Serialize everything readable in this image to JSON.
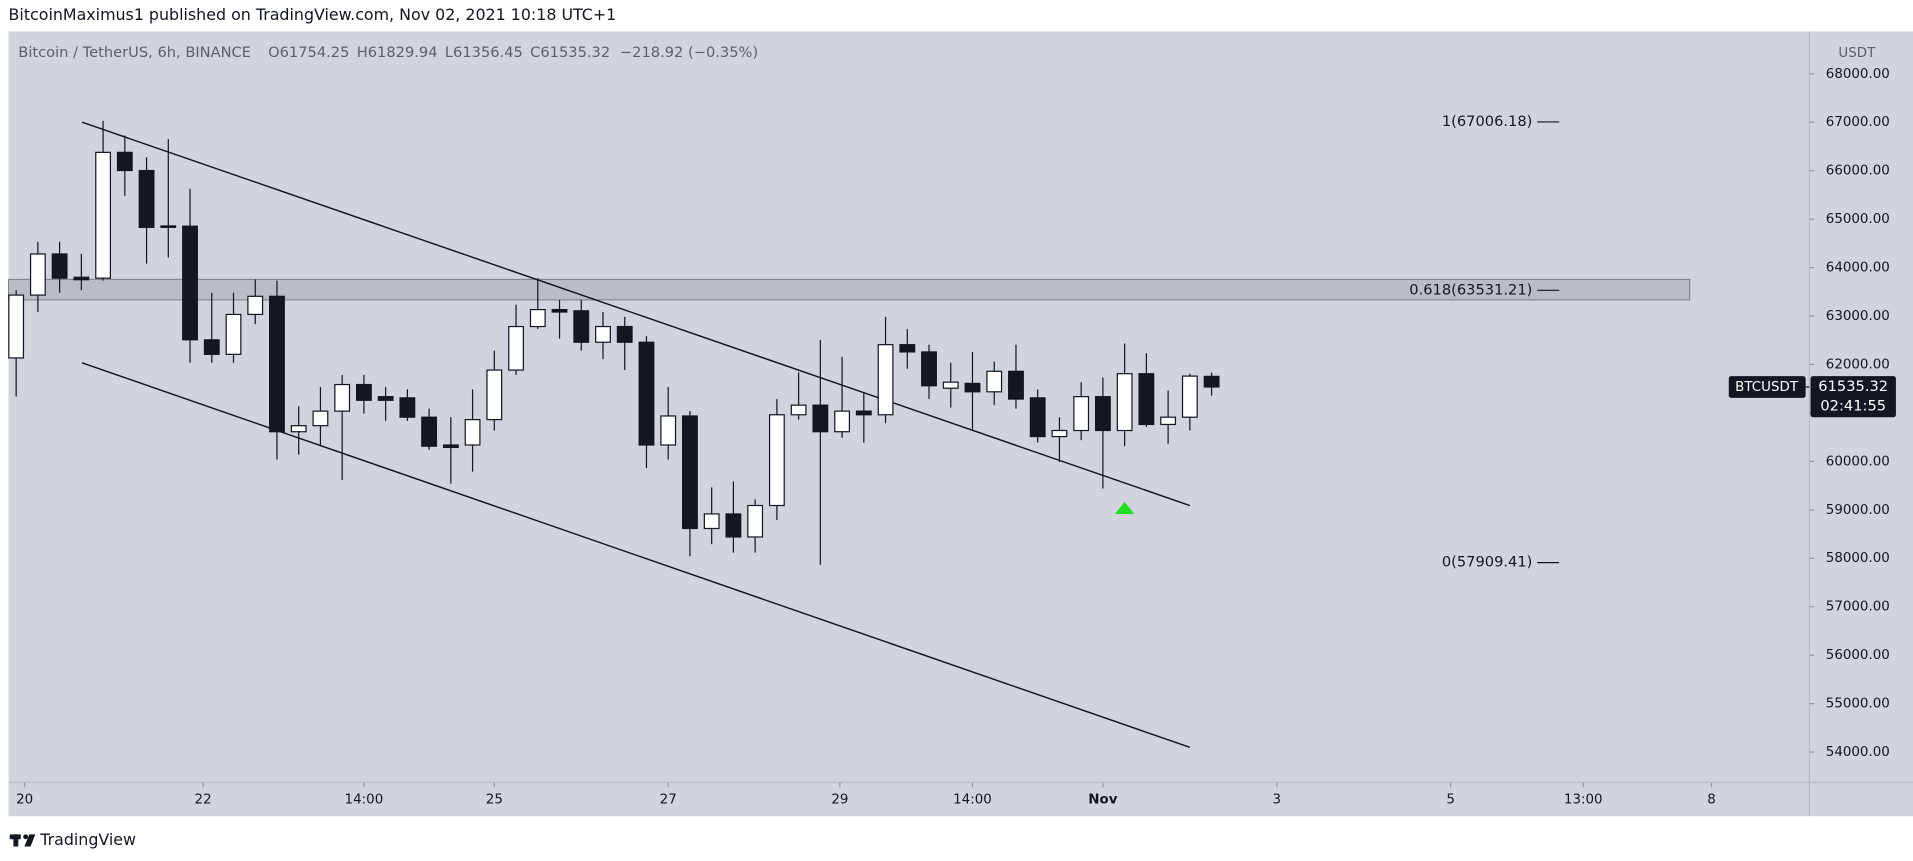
{
  "header": {
    "author_line": "BitcoinMaximus1 published on TradingView.com, Nov 02, 2021 10:18 UTC+1"
  },
  "footer": {
    "brand": "TradingView"
  },
  "chart_data": {
    "type": "candlestick",
    "symbol": "Bitcoin / TetherUS, 6h, BINANCE",
    "legend_values": [
      {
        "label": "O",
        "value": 61754.25
      },
      {
        "label": "H",
        "value": 61829.94
      },
      {
        "label": "L",
        "value": 61356.45
      },
      {
        "label": "C",
        "value": 61535.32
      }
    ],
    "change": "−218.92 (−0.35%)",
    "y_axis_title": "USDT",
    "open": [
      62135,
      63432,
      64281,
      63800,
      63782,
      66378,
      66003,
      64860,
      64855,
      62509,
      62209,
      63033,
      63407,
      60612,
      60737,
      61037,
      61586,
      61336,
      61311,
      60912,
      60338,
      60338,
      60862,
      61885,
      62783,
      63133,
      63108,
      62459,
      62783,
      62459,
      60338,
      60937,
      58615,
      58915,
      58440,
      59089,
      60962,
      61161,
      60612,
      61037,
      60962,
      62409,
      62259,
      61510,
      61610,
      61436,
      61859,
      61311,
      60512,
      60637,
      61336,
      60637,
      61810,
      60762,
      60912,
      61754.25
    ],
    "high": [
      63532,
      64531,
      64531,
      64281,
      67027,
      66727,
      66278,
      66652,
      65629,
      63482,
      63482,
      63757,
      63732,
      61138,
      61536,
      61785,
      61785,
      61536,
      61486,
      61087,
      60912,
      61486,
      62284,
      63233,
      63782,
      63332,
      63332,
      63083,
      62983,
      62584,
      61536,
      61037,
      59464,
      59588,
      59214,
      61286,
      61835,
      62509,
      62160,
      61411,
      62983,
      62733,
      62409,
      62035,
      62259,
      62060,
      62409,
      61486,
      60912,
      61635,
      61735,
      62434,
      62235,
      61461,
      61810,
      61829.94
    ],
    "low": [
      61336,
      63083,
      63482,
      63532,
      63732,
      65479,
      64081,
      64206,
      62035,
      62035,
      62035,
      62833,
      60038,
      60138,
      60337,
      59613,
      60986,
      60837,
      60837,
      60238,
      59539,
      59788,
      60637,
      61785,
      62733,
      62534,
      62284,
      62110,
      61885,
      59863,
      60038,
      58041,
      58291,
      58116,
      58116,
      58790,
      60862,
      57866,
      60487,
      60387,
      60787,
      61910,
      61286,
      61111,
      60663,
      61161,
      61087,
      60387,
      59988,
      60438,
      59439,
      60313,
      60712,
      60363,
      60637,
      61356.45
    ],
    "close": [
      63432,
      64281,
      63782,
      63750,
      66378,
      66003,
      64830,
      64830,
      62509,
      62209,
      63033,
      63407,
      60612,
      60737,
      61037,
      61586,
      61261,
      61261,
      60912,
      60313,
      60288,
      60862,
      61885,
      62783,
      63133,
      63083,
      62459,
      62783,
      62459,
      60338,
      60937,
      58615,
      58915,
      58440,
      59089,
      60962,
      61161,
      60612,
      61037,
      60962,
      62409,
      62259,
      61560,
      61635,
      61436,
      61859,
      61286,
      60512,
      60637,
      61336,
      60637,
      61810,
      60762,
      60912,
      61760,
      61535.32
    ],
    "up_color": "#ffffff",
    "down_color": "#131722",
    "outline_color": "#131722",
    "xlim": [
      -0.35,
      82.5
    ],
    "xticks": [
      {
        "value": 0.39,
        "label": "20"
      },
      {
        "value": 8.6,
        "label": "22"
      },
      {
        "value": 16.0,
        "label": "14:00"
      },
      {
        "value": 22.0,
        "label": "25"
      },
      {
        "value": 30.0,
        "label": "27"
      },
      {
        "value": 37.9,
        "label": "29"
      },
      {
        "value": 44.0,
        "label": "14:00"
      },
      {
        "value": 50.0,
        "label": "Nov"
      },
      {
        "value": 58.0,
        "label": "3"
      },
      {
        "value": 66.0,
        "label": "5"
      },
      {
        "value": 72.1,
        "label": "13:00"
      },
      {
        "value": 78.0,
        "label": "8"
      }
    ],
    "ylim": [
      53374,
      68874
    ],
    "yticks": [
      {
        "value": 54000,
        "label": "54000.00"
      },
      {
        "value": 55000,
        "label": "55000.00"
      },
      {
        "value": 56000,
        "label": "56000.00"
      },
      {
        "value": 57000,
        "label": "57000.00"
      },
      {
        "value": 58000,
        "label": "58000.00"
      },
      {
        "value": 59000,
        "label": "59000.00"
      },
      {
        "value": 60000,
        "label": "60000.00"
      },
      {
        "value": 61000,
        "label": "61000.00"
      },
      {
        "value": 62000,
        "label": "62000.00"
      },
      {
        "value": 63000,
        "label": "63000.00"
      },
      {
        "value": 64000,
        "label": "64000.00"
      },
      {
        "value": 65000,
        "label": "65000.00"
      },
      {
        "value": 66000,
        "label": "66000.00"
      },
      {
        "value": 67000,
        "label": "67000.00"
      },
      {
        "value": 68000,
        "label": "68000.00"
      }
    ],
    "fib_levels": [
      {
        "value": 67006.18,
        "label": "1(67006.18)"
      },
      {
        "value": 63531.21,
        "label": "0.618(63531.21)"
      },
      {
        "value": 57909.41,
        "label": "0(57909.41)"
      }
    ],
    "zone": [
      63333,
      63757
    ],
    "trendlines": [
      {
        "x": [
          3.03,
          54
        ],
        "y": [
          67002,
          59089
        ]
      },
      {
        "x": [
          3.03,
          54
        ],
        "y": [
          62035,
          54097
        ]
      }
    ],
    "marker": {
      "x": 51,
      "y": 59039,
      "color": "#22dd22"
    },
    "last_price": {
      "symbol": "BTCUSDT",
      "value": 61535.32,
      "countdown": "02:41:55"
    }
  }
}
